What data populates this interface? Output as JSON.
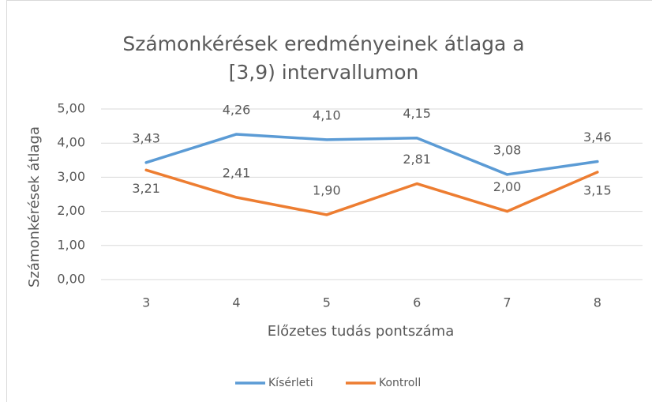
{
  "chart_data": {
    "type": "line",
    "title": "Számonkérések eredményeinek átlaga a [3,9) intervallumon",
    "x_label": "Előzetes tudás pontszáma",
    "y_label": "Számonkérések átlaga",
    "categories": [
      "3",
      "4",
      "5",
      "6",
      "7",
      "8"
    ],
    "series": [
      {
        "name": "Kísérleti",
        "color": "#5b9bd5",
        "values": [
          3.43,
          4.26,
          4.1,
          4.15,
          3.08,
          3.46
        ],
        "value_labels": [
          "3,43",
          "4,26",
          "4,10",
          "4,15",
          "3,08",
          "3,46"
        ]
      },
      {
        "name": "Kontroll",
        "color": "#ed7d31",
        "values": [
          3.21,
          2.41,
          1.9,
          2.81,
          2.0,
          3.15
        ],
        "value_labels": [
          "3,21",
          "2,41",
          "1,90",
          "2,81",
          "2,00",
          "3,15"
        ]
      }
    ],
    "ylim": [
      0,
      5
    ],
    "yticks": [
      {
        "value": 0,
        "label": "0,00"
      },
      {
        "value": 1,
        "label": "1,00"
      },
      {
        "value": 2,
        "label": "2,00"
      },
      {
        "value": 3,
        "label": "3,00"
      },
      {
        "value": 4,
        "label": "4,00"
      },
      {
        "value": 5,
        "label": "5,00"
      }
    ],
    "grid": true,
    "legend": "bottom"
  }
}
